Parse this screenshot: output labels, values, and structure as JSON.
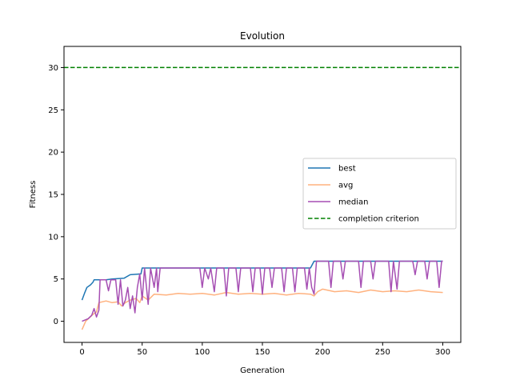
{
  "chart_data": {
    "type": "line",
    "title": "Evolution",
    "xlabel": "Generation",
    "ylabel": "Fitness",
    "xlim": [
      -15,
      315
    ],
    "ylim": [
      -2.5,
      32.5
    ],
    "xticks": [
      0,
      50,
      100,
      150,
      200,
      250,
      300
    ],
    "yticks": [
      0,
      5,
      10,
      15,
      20,
      25,
      30
    ],
    "grid": false,
    "legend_position": "center-right",
    "series": [
      {
        "name": "best",
        "color": "#1f77b4",
        "style": "solid",
        "points": [
          [
            0,
            2.5
          ],
          [
            2,
            3.3
          ],
          [
            4,
            4.0
          ],
          [
            7,
            4.3
          ],
          [
            9,
            4.6
          ],
          [
            10,
            4.9
          ],
          [
            20,
            4.9
          ],
          [
            25,
            5.0
          ],
          [
            35,
            5.1
          ],
          [
            40,
            5.5
          ],
          [
            49,
            5.6
          ],
          [
            50,
            6.3
          ],
          [
            190,
            6.3
          ],
          [
            193,
            7.1
          ],
          [
            300,
            7.1
          ]
        ]
      },
      {
        "name": "avg",
        "color": "#ffb27f",
        "style": "solid",
        "points": [
          [
            0,
            -1.0
          ],
          [
            3,
            0.0
          ],
          [
            6,
            0.4
          ],
          [
            9,
            0.8
          ],
          [
            12,
            1.1
          ],
          [
            14,
            2.2
          ],
          [
            20,
            2.4
          ],
          [
            25,
            2.2
          ],
          [
            30,
            2.3
          ],
          [
            33,
            1.8
          ],
          [
            36,
            2.2
          ],
          [
            40,
            2.5
          ],
          [
            45,
            2.7
          ],
          [
            48,
            2.2
          ],
          [
            50,
            3.0
          ],
          [
            55,
            2.5
          ],
          [
            60,
            3.2
          ],
          [
            70,
            3.1
          ],
          [
            80,
            3.3
          ],
          [
            90,
            3.2
          ],
          [
            100,
            3.3
          ],
          [
            110,
            3.1
          ],
          [
            120,
            3.4
          ],
          [
            130,
            3.2
          ],
          [
            140,
            3.3
          ],
          [
            150,
            3.2
          ],
          [
            160,
            3.3
          ],
          [
            170,
            3.1
          ],
          [
            180,
            3.3
          ],
          [
            190,
            3.2
          ],
          [
            193,
            3.0
          ],
          [
            196,
            3.5
          ],
          [
            200,
            3.8
          ],
          [
            210,
            3.5
          ],
          [
            220,
            3.6
          ],
          [
            230,
            3.4
          ],
          [
            240,
            3.7
          ],
          [
            250,
            3.5
          ],
          [
            260,
            3.6
          ],
          [
            270,
            3.5
          ],
          [
            280,
            3.7
          ],
          [
            290,
            3.5
          ],
          [
            300,
            3.4
          ]
        ]
      },
      {
        "name": "median",
        "color": "#a64fb3",
        "style": "solid",
        "points": [
          [
            0,
            0.0
          ],
          [
            5,
            0.3
          ],
          [
            8,
            0.7
          ],
          [
            10,
            1.5
          ],
          [
            12,
            0.5
          ],
          [
            14,
            1.3
          ],
          [
            15,
            4.9
          ],
          [
            20,
            4.9
          ],
          [
            22,
            3.6
          ],
          [
            24,
            4.9
          ],
          [
            28,
            4.9
          ],
          [
            30,
            2.0
          ],
          [
            32,
            4.9
          ],
          [
            34,
            1.8
          ],
          [
            36,
            2.5
          ],
          [
            38,
            4.0
          ],
          [
            40,
            1.5
          ],
          [
            42,
            3.0
          ],
          [
            44,
            1.0
          ],
          [
            46,
            4.0
          ],
          [
            48,
            5.6
          ],
          [
            50,
            2.5
          ],
          [
            52,
            6.3
          ],
          [
            55,
            2.0
          ],
          [
            57,
            6.3
          ],
          [
            60,
            4.0
          ],
          [
            62,
            6.3
          ],
          [
            63,
            3.5
          ],
          [
            65,
            6.3
          ],
          [
            98,
            6.3
          ],
          [
            100,
            4.0
          ],
          [
            102,
            6.3
          ],
          [
            105,
            5.0
          ],
          [
            107,
            6.3
          ],
          [
            110,
            3.5
          ],
          [
            112,
            6.3
          ],
          [
            118,
            6.3
          ],
          [
            120,
            3.0
          ],
          [
            122,
            6.3
          ],
          [
            128,
            6.3
          ],
          [
            130,
            3.5
          ],
          [
            132,
            6.3
          ],
          [
            140,
            6.3
          ],
          [
            142,
            3.5
          ],
          [
            144,
            6.3
          ],
          [
            148,
            6.3
          ],
          [
            150,
            3.2
          ],
          [
            152,
            6.3
          ],
          [
            156,
            6.3
          ],
          [
            158,
            4.0
          ],
          [
            160,
            6.3
          ],
          [
            166,
            6.3
          ],
          [
            168,
            3.5
          ],
          [
            170,
            6.3
          ],
          [
            175,
            6.3
          ],
          [
            177,
            3.5
          ],
          [
            179,
            6.3
          ],
          [
            185,
            6.3
          ],
          [
            187,
            3.8
          ],
          [
            189,
            6.3
          ],
          [
            191,
            4.0
          ],
          [
            193,
            3.2
          ],
          [
            195,
            7.1
          ],
          [
            205,
            7.1
          ],
          [
            207,
            4.0
          ],
          [
            209,
            7.1
          ],
          [
            215,
            7.1
          ],
          [
            217,
            5.0
          ],
          [
            219,
            7.1
          ],
          [
            230,
            7.1
          ],
          [
            232,
            4.0
          ],
          [
            234,
            7.1
          ],
          [
            240,
            7.1
          ],
          [
            242,
            5.0
          ],
          [
            244,
            7.1
          ],
          [
            255,
            7.1
          ],
          [
            257,
            3.5
          ],
          [
            259,
            7.1
          ],
          [
            262,
            3.8
          ],
          [
            264,
            7.1
          ],
          [
            275,
            7.1
          ],
          [
            277,
            5.5
          ],
          [
            279,
            7.1
          ],
          [
            285,
            7.1
          ],
          [
            287,
            5.0
          ],
          [
            289,
            7.1
          ],
          [
            295,
            7.1
          ],
          [
            297,
            4.0
          ],
          [
            299,
            7.1
          ],
          [
            300,
            7.1
          ]
        ]
      },
      {
        "name": "completion criterion",
        "color": "#008000",
        "style": "dashed",
        "points": [
          [
            -15,
            30
          ],
          [
            315,
            30
          ]
        ]
      }
    ]
  }
}
